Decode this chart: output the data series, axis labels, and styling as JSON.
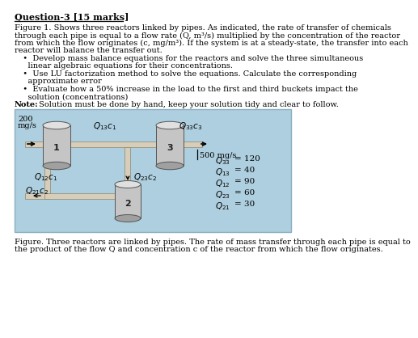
{
  "title": "Question-3 [15 marks]",
  "para_lines": [
    "Figure 1. Shows three reactors linked by pipes. As indicated, the rate of transfer of chemicals",
    "through each pipe is equal to a flow rate (Q, m³/s) multiplied by the concentration of the reactor",
    "from which the flow originates (c, mg/m³). If the system is at a steady-state, the transfer into each",
    "reactor will balance the transfer out."
  ],
  "bullet_lines": [
    "  •  Develop mass balance equations for the reactors and solve the three simultaneous",
    "    linear algebraic equations for their concentrations.",
    "  •  Use LU factorization method to solve the equations. Calculate the corresponding",
    "    approximate error",
    "  •  Evaluate how a 50% increase in the load to the first and third buckets impact the",
    "    solution (concentrations)"
  ],
  "note_bold": "Note:",
  "note_rest": " Solution must be done by hand, keep your solution tidy and clear to follow.",
  "caption_lines": [
    "Figure. Three reactors are linked by pipes. The rate of mass transfer through each pipe is equal to",
    "the product of the flow Q and concentration c of the reactor from which the flow originates."
  ],
  "diag_bg": "#aecfdf",
  "diag_border": "#8ab0c0",
  "gray_body": "#c5c5c5",
  "gray_top": "#e0e0e0",
  "gray_bot": "#a0a0a0",
  "pipe_face": "#d8cdb8",
  "pipe_edge": "#888870",
  "flow_syms": [
    "$Q_{33}$",
    "$Q_{13}$",
    "$Q_{12}$",
    "$Q_{23}$",
    "$Q_{21}$"
  ],
  "flow_vals": [
    "= 120",
    "= 40",
    "= 90",
    "= 60",
    "= 30"
  ]
}
